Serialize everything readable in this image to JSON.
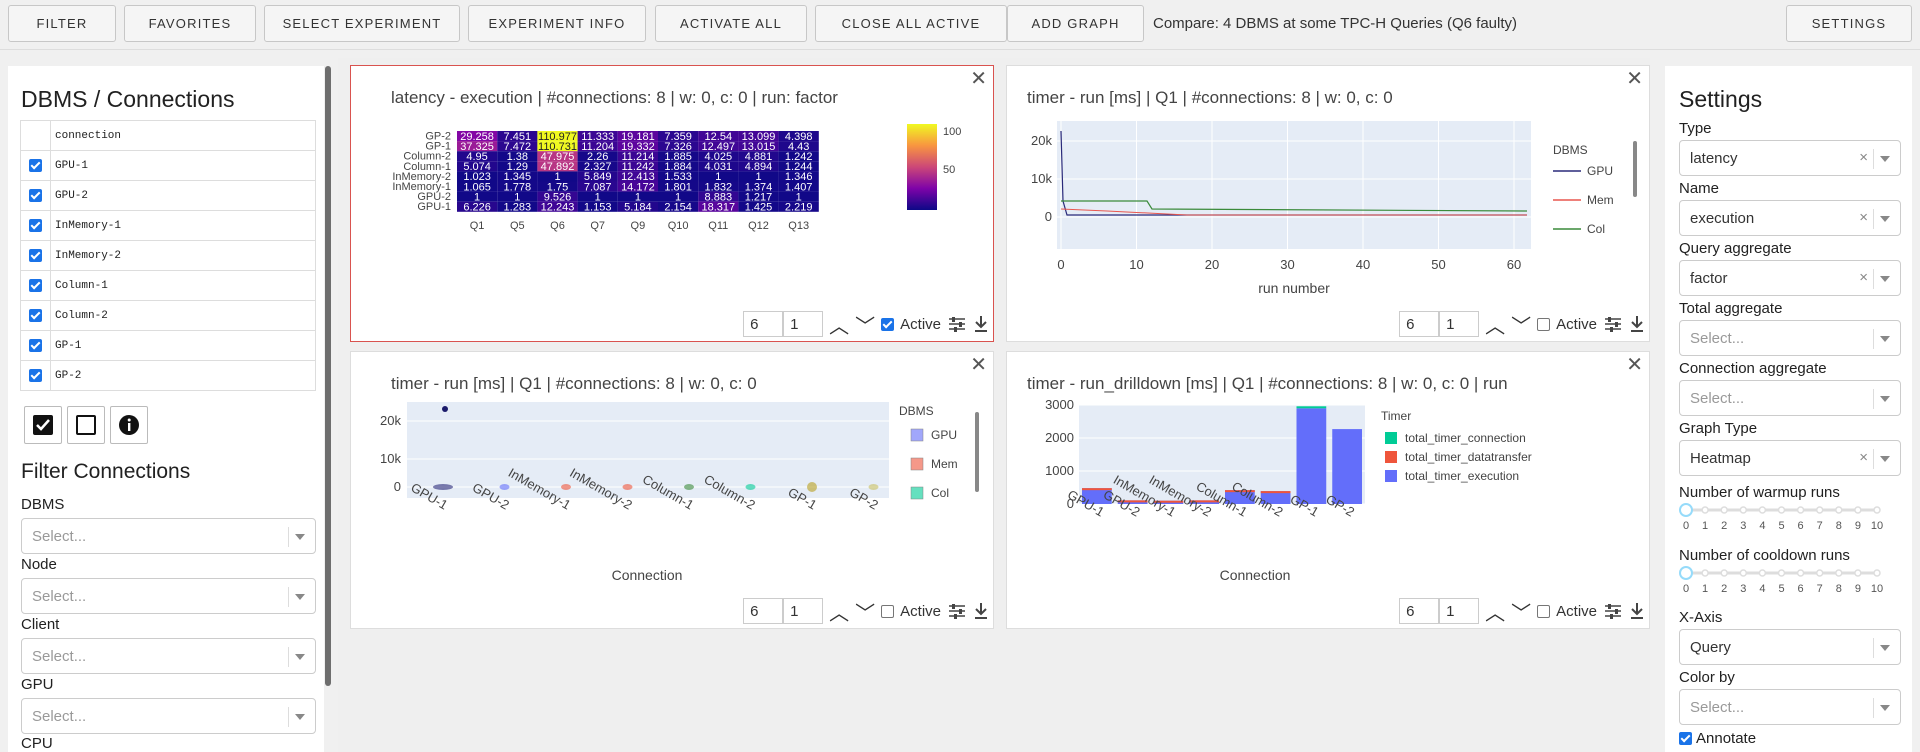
{
  "toolbar": {
    "filter": "FILTER",
    "favorites": "FAVORITES",
    "select_experiment": "SELECT EXPERIMENT",
    "experiment_info": "EXPERIMENT INFO",
    "activate_all": "ACTIVATE ALL",
    "close_all_active": "CLOSE ALL ACTIVE",
    "add_graph": "ADD GRAPH",
    "title": "Compare: 4 DBMS at some TPC-H Queries (Q6 faulty)",
    "settings": "SETTINGS"
  },
  "left": {
    "heading": "DBMS / Connections",
    "table_header": "connection",
    "connections": [
      {
        "name": "GPU-1",
        "checked": true
      },
      {
        "name": "GPU-2",
        "checked": true
      },
      {
        "name": "InMemory-1",
        "checked": true
      },
      {
        "name": "InMemory-2",
        "checked": true
      },
      {
        "name": "Column-1",
        "checked": true
      },
      {
        "name": "Column-2",
        "checked": true
      },
      {
        "name": "GP-1",
        "checked": true
      },
      {
        "name": "GP-2",
        "checked": true
      }
    ],
    "filter_heading": "Filter Connections",
    "filters": [
      {
        "label": "DBMS",
        "placeholder": "Select..."
      },
      {
        "label": "Node",
        "placeholder": "Select..."
      },
      {
        "label": "Client",
        "placeholder": "Select..."
      },
      {
        "label": "GPU",
        "placeholder": "Select..."
      },
      {
        "label": "CPU"
      }
    ]
  },
  "panels": [
    {
      "title": "latency - execution | #connections: 8 | w: 0, c: 0 | run: factor",
      "n1": "6",
      "n2": "1",
      "active": true,
      "active_label": "Active"
    },
    {
      "title": "timer - run [ms] | Q1  | #connections: 8 | w: 0, c: 0",
      "n1": "6",
      "n2": "1",
      "active": false,
      "active_label": "Active"
    },
    {
      "title": "timer - run [ms] | Q1  | #connections: 8 | w: 0, c: 0",
      "n1": "6",
      "n2": "1",
      "active": false,
      "active_label": "Active"
    },
    {
      "title": "timer - run_drilldown [ms] | Q1  | #connections: 8 | w: 0, c: 0 | run",
      "n1": "6",
      "n2": "1",
      "active": false,
      "active_label": "Active"
    }
  ],
  "chart_data": [
    {
      "type": "heatmap",
      "x": [
        "Q1",
        "Q5",
        "Q6",
        "Q7",
        "Q9",
        "Q10",
        "Q11",
        "Q12",
        "Q13"
      ],
      "y": [
        "GP-2",
        "GP-1",
        "Column-2",
        "Column-1",
        "InMemory-2",
        "InMemory-1",
        "GPU-2",
        "GPU-1"
      ],
      "z": [
        [
          29.258,
          7.451,
          110.977,
          11.333,
          19.181,
          7.359,
          12.54,
          13.099,
          4.398
        ],
        [
          37.325,
          7.472,
          110.731,
          11.204,
          19.332,
          7.326,
          12.497,
          13.015,
          4.43
        ],
        [
          4.95,
          1.38,
          47.975,
          2.26,
          11.214,
          1.885,
          4.025,
          4.881,
          1.242
        ],
        [
          5.074,
          1.29,
          47.892,
          2.327,
          11.242,
          1.884,
          4.031,
          4.894,
          1.244
        ],
        [
          1.023,
          1.345,
          1.0,
          5.849,
          12.413,
          1.533,
          1.0,
          1.0,
          1.346
        ],
        [
          1.065,
          1.778,
          1.75,
          7.087,
          14.172,
          1.801,
          1.832,
          1.374,
          1.407
        ],
        [
          1.0,
          1.0,
          9.526,
          1.0,
          1.0,
          1.0,
          8.883,
          1.217,
          1.0
        ],
        [
          6.226,
          1.283,
          12.243,
          1.153,
          5.184,
          2.154,
          18.317,
          1.425,
          2.219
        ]
      ],
      "colorbar_ticks": [
        "100",
        "50"
      ]
    },
    {
      "type": "line",
      "xlabel": "run number",
      "xticks": [
        "0",
        "10",
        "20",
        "30",
        "40",
        "50",
        "60"
      ],
      "yticks": [
        "20k",
        "10k",
        "0"
      ],
      "legend_title": "DBMS",
      "series": [
        {
          "name": "GPU",
          "color": "#2a2a7a"
        },
        {
          "name": "Mem",
          "color": "#e8574f"
        },
        {
          "name": "Col",
          "color": "#3a8a3a"
        }
      ]
    },
    {
      "type": "box",
      "xlabel": "Connection",
      "categories": [
        "GPU-1",
        "GPU-2",
        "InMemory-1",
        "InMemory-2",
        "Column-1",
        "Column-2",
        "GP-1",
        "GP-2"
      ],
      "yticks": [
        "20k",
        "10k",
        "0"
      ],
      "legend_title": "DBMS",
      "series": [
        {
          "name": "GPU",
          "color": "#636efa"
        },
        {
          "name": "Mem",
          "color": "#ef553b"
        },
        {
          "name": "Col",
          "color": "#00cc96"
        }
      ]
    },
    {
      "type": "bar",
      "xlabel": "Connection",
      "categories": [
        "GPU-1",
        "GPU-2",
        "InMemory-1",
        "InMemory-2",
        "Column-1",
        "Column-2",
        "GP-1",
        "GP-2"
      ],
      "values": [
        480,
        110,
        100,
        110,
        420,
        390,
        2900,
        2270
      ],
      "yticks": [
        "3000",
        "2000",
        "1000",
        "0"
      ],
      "ylim": [
        0,
        3000
      ],
      "legend_title": "Timer",
      "series": [
        {
          "name": "total_timer_connection",
          "color": "#00cc96"
        },
        {
          "name": "total_timer_datatransfer",
          "color": "#ef553b"
        },
        {
          "name": "total_timer_execution",
          "color": "#636efa"
        }
      ]
    }
  ],
  "settings": {
    "heading": "Settings",
    "fields": [
      {
        "label": "Type",
        "value": "latency"
      },
      {
        "label": "Name",
        "value": "execution"
      },
      {
        "label": "Query aggregate",
        "value": "factor"
      },
      {
        "label": "Total aggregate",
        "placeholder": "Select..."
      },
      {
        "label": "Connection aggregate",
        "placeholder": "Select..."
      },
      {
        "label": "Graph Type",
        "value": "Heatmap"
      }
    ],
    "warmup_label": "Number of warmup runs",
    "cooldown_label": "Number of cooldown runs",
    "slider_ticks": [
      "0",
      "1",
      "2",
      "3",
      "4",
      "5",
      "6",
      "7",
      "8",
      "9",
      "10"
    ],
    "warmup_value": 0,
    "cooldown_value": 0,
    "xaxis_label": "X-Axis",
    "xaxis_value": "Query",
    "colorby_label": "Color by",
    "colorby_placeholder": "Select...",
    "annotate_label": "Annotate"
  }
}
